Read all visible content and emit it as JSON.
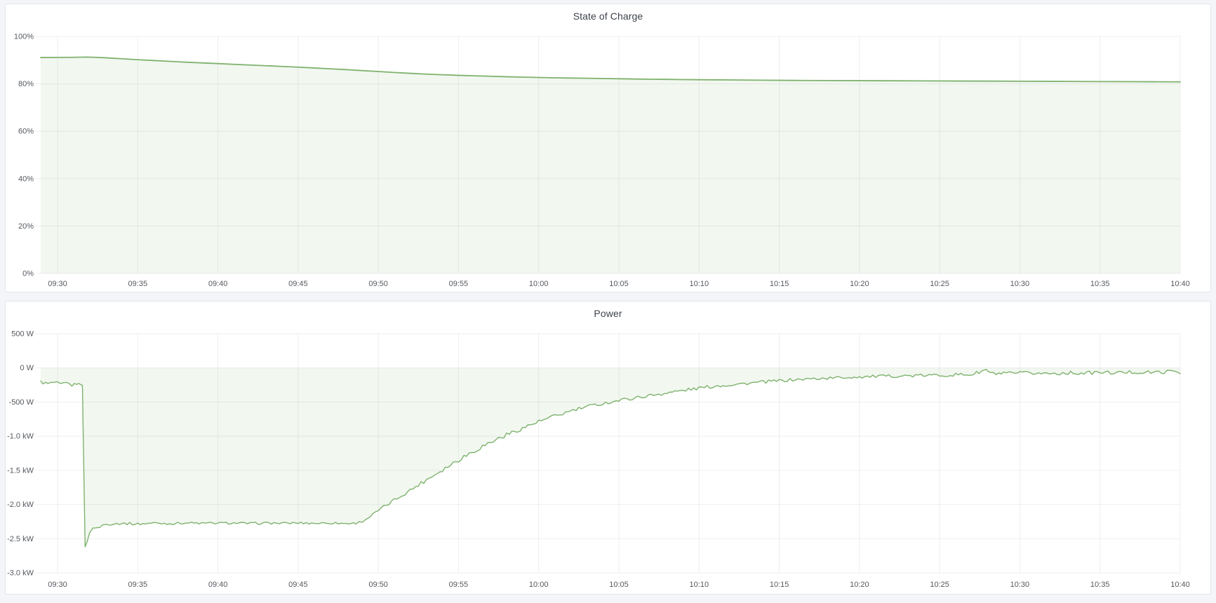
{
  "page": {
    "background_color": "#f4f5f9",
    "panel_background": "#ffffff",
    "accent_green": "#7EB26D",
    "grid_color": "rgba(45,51,59,0.08)",
    "axis_text_color": "#55585e"
  },
  "chart_data": [
    {
      "type": "area",
      "title": "State of Charge",
      "ylabel": "",
      "xlabel": "",
      "unit": "percent",
      "legend": "hidden",
      "grid": "on",
      "line_color": "#7EB26D",
      "fill_opacity": 0.1,
      "fill_to_value": 0,
      "ylim": [
        0,
        100
      ],
      "xlim_minutes": [
        -1.05,
        70
      ],
      "y_ticks": [
        {
          "label": "100%",
          "value": 100
        },
        {
          "label": "80%",
          "value": 80
        },
        {
          "label": "60%",
          "value": 60
        },
        {
          "label": "40%",
          "value": 40
        },
        {
          "label": "20%",
          "value": 20
        },
        {
          "label": "0%",
          "value": 0
        }
      ],
      "x_ticks": [
        {
          "label": "09:30",
          "t": 0
        },
        {
          "label": "09:35",
          "t": 5
        },
        {
          "label": "09:40",
          "t": 10
        },
        {
          "label": "09:45",
          "t": 15
        },
        {
          "label": "09:50",
          "t": 20
        },
        {
          "label": "09:55",
          "t": 25
        },
        {
          "label": "10:00",
          "t": 30
        },
        {
          "label": "10:05",
          "t": 35
        },
        {
          "label": "10:10",
          "t": 40
        },
        {
          "label": "10:15",
          "t": 45
        },
        {
          "label": "10:20",
          "t": 50
        },
        {
          "label": "10:25",
          "t": 55
        },
        {
          "label": "10:30",
          "t": 60
        },
        {
          "label": "10:35",
          "t": 65
        },
        {
          "label": "10:40",
          "t": 70
        }
      ],
      "points": [
        [
          -1.05,
          91.1
        ],
        [
          0,
          91.15
        ],
        [
          1,
          91.2
        ],
        [
          1.8,
          91.3
        ],
        [
          2.5,
          91.15
        ],
        [
          3,
          91.0
        ],
        [
          4,
          90.6
        ],
        [
          5,
          90.2
        ],
        [
          6,
          89.85
        ],
        [
          7,
          89.5
        ],
        [
          8,
          89.15
        ],
        [
          9,
          88.85
        ],
        [
          10,
          88.55
        ],
        [
          11,
          88.25
        ],
        [
          12,
          87.95
        ],
        [
          13,
          87.65
        ],
        [
          14,
          87.35
        ],
        [
          15,
          87.05
        ],
        [
          16,
          86.7
        ],
        [
          17,
          86.35
        ],
        [
          18,
          86.0
        ],
        [
          19,
          85.6
        ],
        [
          20,
          85.2
        ],
        [
          21,
          84.8
        ],
        [
          22,
          84.45
        ],
        [
          23,
          84.1
        ],
        [
          24,
          83.85
        ],
        [
          25,
          83.6
        ],
        [
          26,
          83.4
        ],
        [
          27,
          83.2
        ],
        [
          28,
          83.0
        ],
        [
          29,
          82.85
        ],
        [
          30,
          82.7
        ],
        [
          31,
          82.55
        ],
        [
          32,
          82.45
        ],
        [
          33,
          82.35
        ],
        [
          34,
          82.25
        ],
        [
          35,
          82.15
        ],
        [
          36,
          82.05
        ],
        [
          37,
          81.95
        ],
        [
          38,
          81.9
        ],
        [
          39,
          81.8
        ],
        [
          40,
          81.75
        ],
        [
          42,
          81.65
        ],
        [
          44,
          81.55
        ],
        [
          46,
          81.45
        ],
        [
          48,
          81.4
        ],
        [
          50,
          81.35
        ],
        [
          52,
          81.3
        ],
        [
          54,
          81.25
        ],
        [
          56,
          81.2
        ],
        [
          58,
          81.15
        ],
        [
          60,
          81.1
        ],
        [
          62,
          81.05
        ],
        [
          64,
          81.0
        ],
        [
          66,
          80.95
        ],
        [
          68,
          80.9
        ],
        [
          70,
          80.85
        ]
      ]
    },
    {
      "type": "area",
      "title": "Power",
      "ylabel": "",
      "xlabel": "",
      "unit": "watt",
      "legend": "hidden",
      "grid": "on",
      "line_color": "#7EB26D",
      "fill_opacity": 0.1,
      "fill_to_value": 0,
      "noise": true,
      "ylim": [
        -3000,
        500
      ],
      "xlim_minutes": [
        -1.05,
        70
      ],
      "y_ticks": [
        {
          "label": "500 W",
          "value": 500
        },
        {
          "label": "0 W",
          "value": 0
        },
        {
          "label": "-500 W",
          "value": -500
        },
        {
          "label": "-1.0 kW",
          "value": -1000
        },
        {
          "label": "-1.5 kW",
          "value": -1500
        },
        {
          "label": "-2.0 kW",
          "value": -2000
        },
        {
          "label": "-2.5 kW",
          "value": -2500
        },
        {
          "label": "-3.0 kW",
          "value": -3000
        }
      ],
      "x_ticks": [
        {
          "label": "09:30",
          "t": 0
        },
        {
          "label": "09:35",
          "t": 5
        },
        {
          "label": "09:40",
          "t": 10
        },
        {
          "label": "09:45",
          "t": 15
        },
        {
          "label": "09:50",
          "t": 20
        },
        {
          "label": "09:55",
          "t": 25
        },
        {
          "label": "10:00",
          "t": 30
        },
        {
          "label": "10:05",
          "t": 35
        },
        {
          "label": "10:10",
          "t": 40
        },
        {
          "label": "10:15",
          "t": 45
        },
        {
          "label": "10:20",
          "t": 50
        },
        {
          "label": "10:25",
          "t": 55
        },
        {
          "label": "10:30",
          "t": 60
        },
        {
          "label": "10:35",
          "t": 65
        },
        {
          "label": "10:40",
          "t": 70
        }
      ],
      "points": [
        [
          -1.05,
          -205,
          25
        ],
        [
          -0.6,
          -235,
          25
        ],
        [
          -0.2,
          -215,
          25
        ],
        [
          0.2,
          -245,
          25
        ],
        [
          0.6,
          -225,
          22
        ],
        [
          0.9,
          -255,
          20
        ],
        [
          1.2,
          -230,
          15
        ],
        [
          1.45,
          -240,
          8
        ],
        [
          1.55,
          -255,
          0
        ],
        [
          1.72,
          -2620,
          0
        ],
        [
          1.85,
          -2540,
          0
        ],
        [
          2.0,
          -2420,
          12
        ],
        [
          2.2,
          -2330,
          18
        ],
        [
          2.5,
          -2350,
          18
        ],
        [
          2.8,
          -2300,
          18
        ],
        [
          3.2,
          -2285,
          18
        ],
        [
          4,
          -2275,
          18
        ],
        [
          5,
          -2285,
          18
        ],
        [
          6,
          -2270,
          16
        ],
        [
          7,
          -2280,
          16
        ],
        [
          8,
          -2268,
          16
        ],
        [
          9,
          -2275,
          16
        ],
        [
          10,
          -2272,
          16
        ],
        [
          11,
          -2270,
          16
        ],
        [
          12,
          -2278,
          16
        ],
        [
          13,
          -2270,
          16
        ],
        [
          14,
          -2274,
          16
        ],
        [
          15,
          -2270,
          16
        ],
        [
          16,
          -2274,
          16
        ],
        [
          17,
          -2270,
          16
        ],
        [
          18,
          -2278,
          16
        ],
        [
          18.6,
          -2272,
          14
        ],
        [
          19,
          -2248,
          14
        ],
        [
          19.5,
          -2175,
          20
        ],
        [
          20,
          -2090,
          22
        ],
        [
          20.5,
          -2010,
          24
        ],
        [
          21,
          -1935,
          24
        ],
        [
          21.5,
          -1860,
          26
        ],
        [
          22,
          -1790,
          28
        ],
        [
          22.5,
          -1712,
          28
        ],
        [
          23,
          -1638,
          30
        ],
        [
          23.5,
          -1562,
          32
        ],
        [
          24,
          -1490,
          32
        ],
        [
          24.5,
          -1418,
          34
        ],
        [
          25,
          -1342,
          36
        ],
        [
          25.5,
          -1275,
          36
        ],
        [
          26,
          -1210,
          38
        ],
        [
          26.5,
          -1148,
          34
        ],
        [
          27,
          -1090,
          34
        ],
        [
          27.5,
          -1032,
          34
        ],
        [
          28,
          -980,
          32
        ],
        [
          28.5,
          -930,
          30
        ],
        [
          29,
          -882,
          30
        ],
        [
          29.5,
          -832,
          30
        ],
        [
          30,
          -788,
          30
        ],
        [
          30.5,
          -748,
          30
        ],
        [
          31,
          -708,
          30
        ],
        [
          31.5,
          -670,
          28
        ],
        [
          32,
          -632,
          28
        ],
        [
          32.5,
          -600,
          28
        ],
        [
          33,
          -570,
          26
        ],
        [
          33.5,
          -545,
          26
        ],
        [
          34,
          -520,
          26
        ],
        [
          34.5,
          -498,
          26
        ],
        [
          35,
          -476,
          25
        ],
        [
          36,
          -438,
          25
        ],
        [
          37,
          -402,
          25
        ],
        [
          38,
          -366,
          25
        ],
        [
          39,
          -330,
          25
        ],
        [
          40,
          -296,
          25
        ],
        [
          41,
          -266,
          24
        ],
        [
          42,
          -245,
          24
        ],
        [
          43,
          -226,
          22
        ],
        [
          44,
          -206,
          22
        ],
        [
          45,
          -188,
          22
        ],
        [
          46,
          -172,
          22
        ],
        [
          47,
          -160,
          22
        ],
        [
          48,
          -150,
          22
        ],
        [
          49,
          -140,
          22
        ],
        [
          50,
          -131,
          22
        ],
        [
          51,
          -125,
          22
        ],
        [
          52,
          -120,
          22
        ],
        [
          53,
          -116,
          22
        ],
        [
          54,
          -111,
          22
        ],
        [
          55,
          -106,
          24
        ],
        [
          56,
          -101,
          25
        ],
        [
          57,
          -96,
          25
        ],
        [
          57.6,
          -55,
          28
        ],
        [
          57.9,
          -25,
          20
        ],
        [
          58.2,
          -85,
          26
        ],
        [
          59,
          -86,
          28
        ],
        [
          60,
          -80,
          28
        ],
        [
          61,
          -76,
          28
        ],
        [
          62,
          -82,
          26
        ],
        [
          63,
          -72,
          26
        ],
        [
          64,
          -77,
          26
        ],
        [
          65,
          -66,
          26
        ],
        [
          66,
          -72,
          26
        ],
        [
          67,
          -62,
          26
        ],
        [
          68,
          -67,
          26
        ],
        [
          69,
          -60,
          24
        ],
        [
          69.7,
          -45,
          20
        ],
        [
          70,
          -85,
          0
        ]
      ]
    }
  ]
}
